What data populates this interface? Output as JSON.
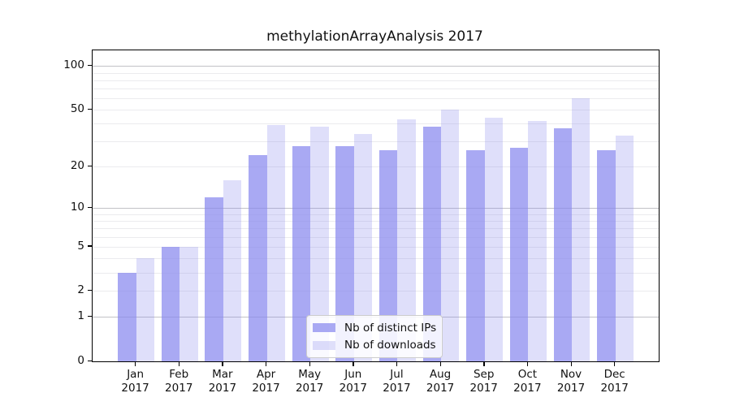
{
  "figure": {
    "background": "#ffffff",
    "frame_color": "#000000"
  },
  "chart_data": {
    "type": "bar",
    "title": "methylationArrayAnalysis 2017",
    "categories": [
      "Jan 2017",
      "Feb 2017",
      "Mar 2017",
      "Apr 2017",
      "May 2017",
      "Jun 2017",
      "Jul 2017",
      "Aug 2017",
      "Sep 2017",
      "Oct 2017",
      "Nov 2017",
      "Dec 2017"
    ],
    "series": [
      {
        "name": "Nb of distinct IPs",
        "color": "rgba(136,136,238,0.72)",
        "color_hex": "#a8a8f3",
        "values": [
          3,
          5,
          12,
          24,
          28,
          28,
          26,
          38,
          26,
          27,
          37,
          26
        ]
      },
      {
        "name": "Nb of downloads",
        "color": "rgba(136,136,238,0.27)",
        "color_hex": "#dcdcf8",
        "values": [
          4,
          5,
          16,
          39,
          38,
          34,
          43,
          50,
          44,
          42,
          60,
          33
        ]
      }
    ],
    "xlabel": "",
    "ylabel": "",
    "yscale": "log1p",
    "ylim": [
      0,
      128
    ],
    "yticks": [
      0,
      1,
      2,
      5,
      10,
      20,
      50,
      100
    ],
    "grid": true,
    "grid_major_values": [
      1,
      10,
      100
    ],
    "grid_minor_values": [
      2,
      3,
      4,
      5,
      6,
      7,
      8,
      9,
      20,
      30,
      40,
      50,
      60,
      70,
      80,
      90
    ],
    "legend_position": "lower center"
  }
}
